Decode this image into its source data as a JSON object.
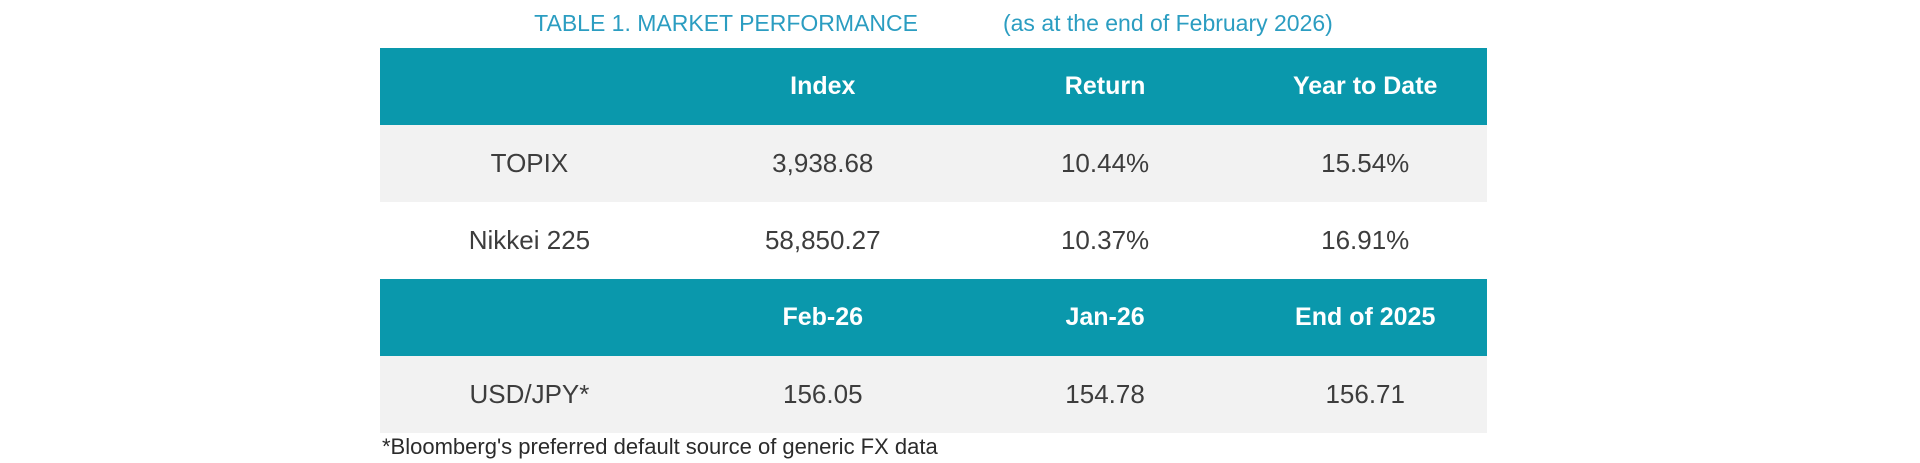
{
  "title": {
    "main": "TABLE 1. MARKET PERFORMANCE",
    "date_note": "(as at the end of February 2026)"
  },
  "index_table": {
    "col_headers": [
      "Index",
      "Return",
      "Year to Date"
    ],
    "rows": [
      {
        "label": "TOPIX",
        "index": "3,938.68",
        "return": "10.44%",
        "ytd": "15.54%"
      },
      {
        "label": "Nikkei 225",
        "index": "58,850.27",
        "return": "10.37%",
        "ytd": "16.91%"
      }
    ]
  },
  "fx_table": {
    "col_headers": [
      "Feb-26",
      "Jan-26",
      "End of 2025"
    ],
    "rows": [
      {
        "label": "USD/JPY*",
        "feb": "156.05",
        "jan": "154.78",
        "end_2025": "156.71"
      }
    ]
  },
  "footnote": "*Bloomberg's preferred default source of generic FX data",
  "colors": {
    "header_bg": "#0a98ac",
    "header_text": "#ffffff",
    "alt_row_bg": "#f2f2f2",
    "title_text": "#2b9dc1",
    "body_text": "#3d3d3d"
  }
}
